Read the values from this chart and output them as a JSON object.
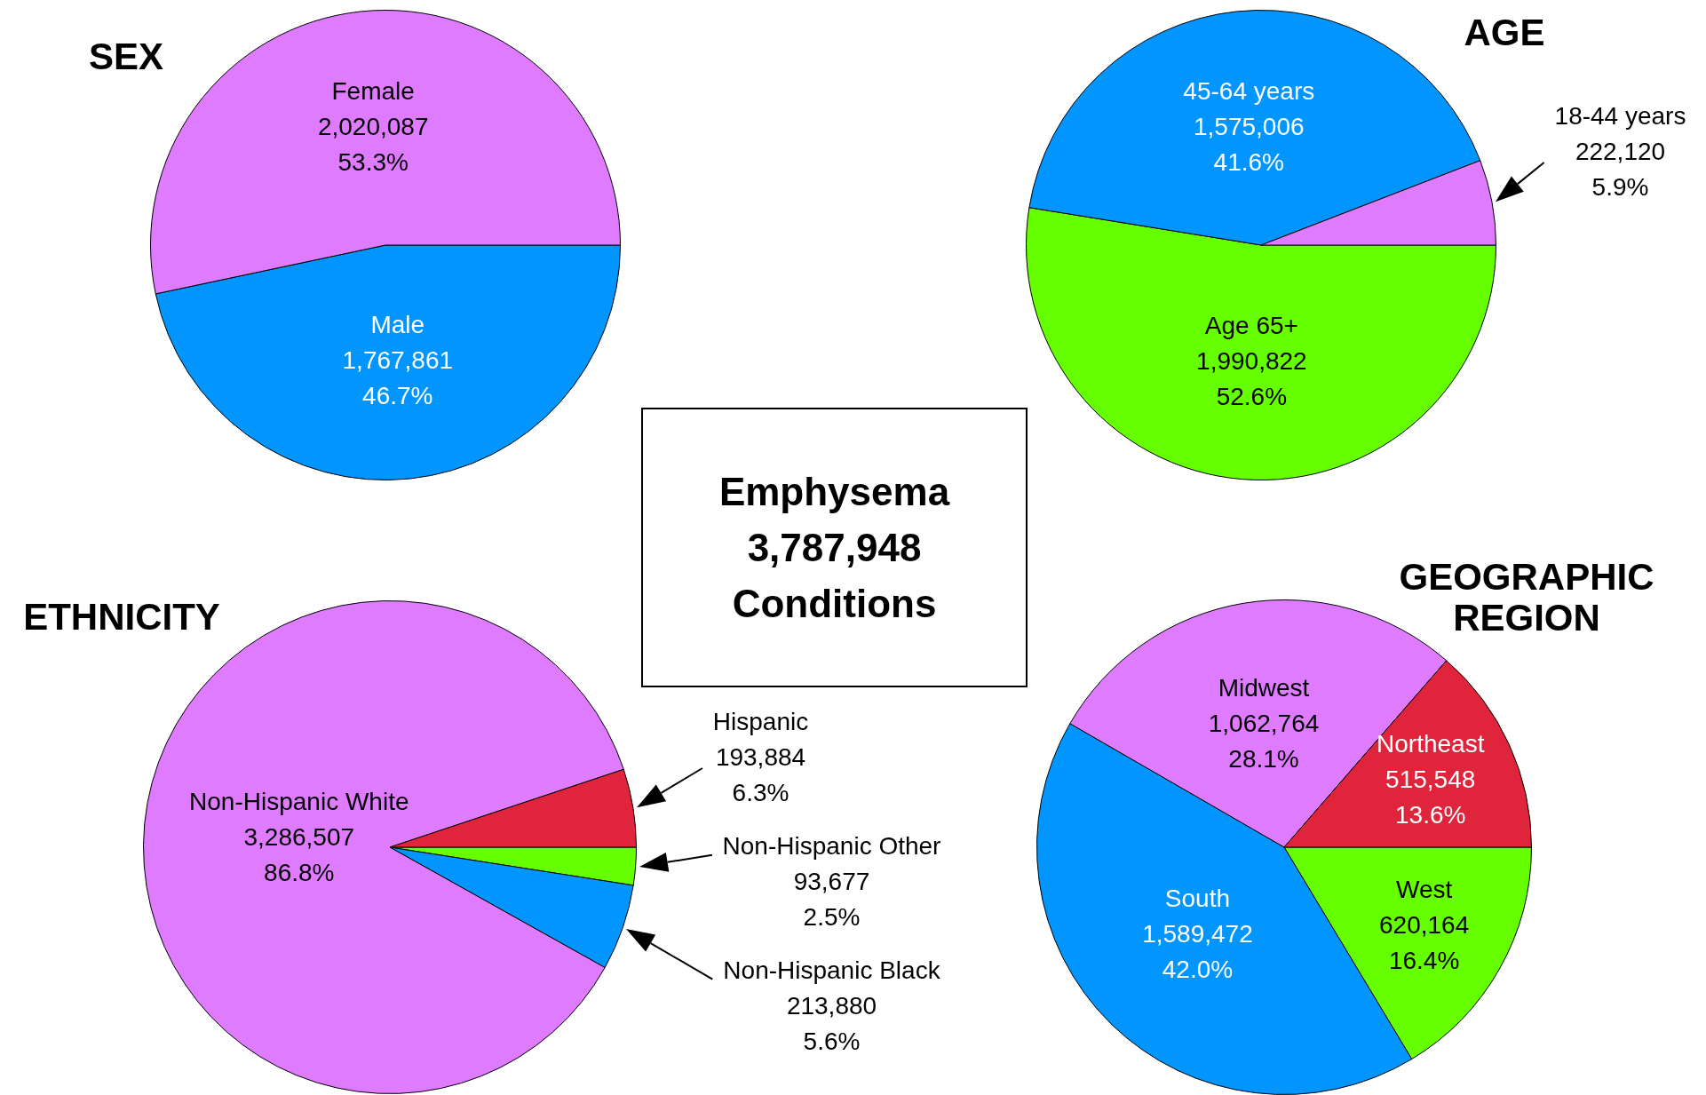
{
  "chart_data": [
    {
      "type": "pie",
      "title": "SEX",
      "categories": [
        "Female",
        "Male"
      ],
      "values": [
        2020087,
        1767861
      ],
      "colors": [
        "#df7bff",
        "#0095ff"
      ],
      "value_labels": [
        "2,020,087\n53.3%",
        "1,767,861\n46.7%"
      ]
    },
    {
      "type": "pie",
      "title": "AGE",
      "categories": [
        "18-44 years",
        "45-64 years",
        "Age 65+"
      ],
      "values": [
        222120,
        1575006,
        1990822
      ],
      "colors": [
        "#df7bff",
        "#0095ff",
        "#66ff00"
      ],
      "value_labels": [
        "222,120\n5.9%",
        "1,575,006\n41.6%",
        "1,990,822\n52.6%"
      ]
    },
    {
      "type": "other",
      "annotations": [
        "Emphysema",
        "3,787,948",
        "Conditions"
      ]
    },
    {
      "type": "pie",
      "title": "ETHNICITY",
      "categories": [
        "Hispanic",
        "Non-Hispanic White",
        "Non-Hispanic Black",
        "Non-Hispanic Other"
      ],
      "values": [
        193884,
        3286507,
        213880,
        93677
      ],
      "colors": [
        "#e0243c",
        "#df7bff",
        "#0095ff",
        "#66ff00"
      ],
      "value_labels": [
        "193,884\n6.3%",
        "3,286,507\n86.8%",
        "213,880\n5.6%",
        "93,677\n2.5%"
      ]
    },
    {
      "type": "pie",
      "title": "GEOGRAPHIC REGION",
      "categories": [
        "Northeast",
        "Midwest",
        "South",
        "West"
      ],
      "values": [
        515548,
        1062764,
        1589472,
        620164
      ],
      "colors": [
        "#e0243c",
        "#df7bff",
        "#0095ff",
        "#66ff00"
      ],
      "value_labels": [
        "515,548\n13.6%",
        "1,062,764\n28.1%",
        "1,589,472\n42.0%",
        "620,164\n16.4%"
      ]
    }
  ]
}
